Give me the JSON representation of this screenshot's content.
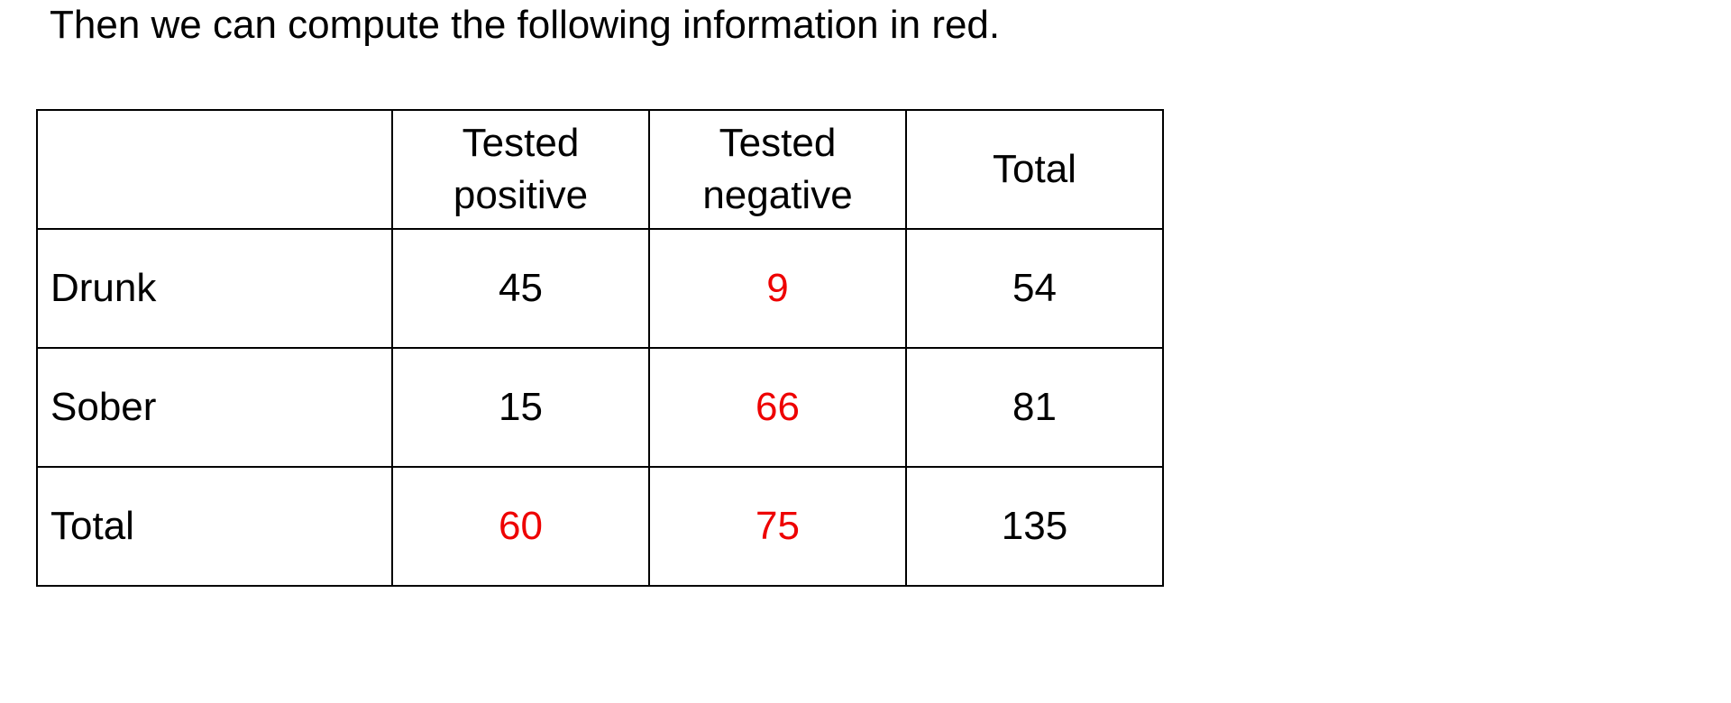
{
  "intro_text": "Then we can compute the following information in red.",
  "highlight_color": "#ee0000",
  "table": {
    "corner": "",
    "headers": [
      {
        "line1": "Tested",
        "line2": "positive"
      },
      {
        "line1": "Tested",
        "line2": "negative"
      },
      {
        "line1": "Total",
        "line2": ""
      }
    ],
    "rows": [
      {
        "label": "Drunk",
        "cells": [
          {
            "value": "45",
            "computed": false
          },
          {
            "value": "9",
            "computed": true
          },
          {
            "value": "54",
            "computed": false
          }
        ]
      },
      {
        "label": "Sober",
        "cells": [
          {
            "value": "15",
            "computed": false
          },
          {
            "value": "66",
            "computed": true
          },
          {
            "value": "81",
            "computed": false
          }
        ]
      },
      {
        "label": "Total",
        "cells": [
          {
            "value": "60",
            "computed": true
          },
          {
            "value": "75",
            "computed": true
          },
          {
            "value": "135",
            "computed": false
          }
        ]
      }
    ]
  }
}
